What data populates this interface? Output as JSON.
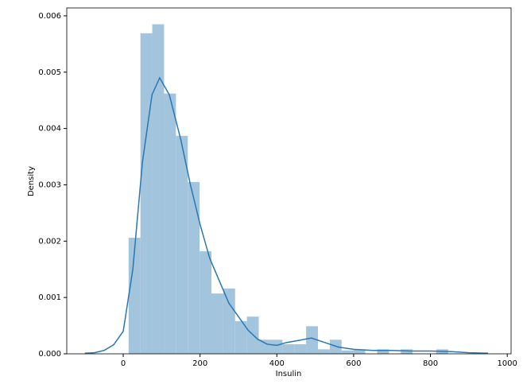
{
  "chart_data": {
    "type": "histogram",
    "x_label": "Insulin",
    "y_label": "Density",
    "bins": [
      14,
      44.8,
      75.6,
      106.4,
      137.3,
      168.1,
      198.9,
      229.7,
      260.5,
      291.3,
      322.1,
      352.9,
      383.8,
      414.6,
      445.4,
      476.2,
      507.0,
      537.8,
      568.6,
      599.5,
      630.3,
      661.1,
      691.9,
      722.7,
      753.5,
      784.3,
      815.1,
      846
    ],
    "values": [
      0.00206,
      0.00569,
      0.00585,
      0.00462,
      0.00387,
      0.00305,
      0.00182,
      0.00107,
      0.00116,
      0.00058,
      0.00066,
      0.00025,
      0.00025,
      0.00017,
      0.00017,
      0.00049,
      8e-05,
      0.00025,
      6e-05,
      8e-05,
      0,
      8e-05,
      0,
      8e-05,
      0,
      0,
      8e-05
    ],
    "color": "#a3c4dd",
    "kde": {
      "color": "#2a77b1",
      "x": [
        -100,
        -75,
        -50,
        -25,
        0,
        25,
        50,
        75,
        95,
        120,
        150,
        175,
        200,
        225,
        250,
        275,
        300,
        325,
        350,
        375,
        400,
        425,
        450,
        490,
        525,
        560,
        600,
        650,
        700,
        750,
        800,
        850,
        900,
        950
      ],
      "values": [
        1e-05,
        2e-05,
        6e-05,
        0.00016,
        0.0004,
        0.0015,
        0.0034,
        0.0046,
        0.0049,
        0.0046,
        0.0038,
        0.003,
        0.0023,
        0.0017,
        0.0013,
        0.0009,
        0.00066,
        0.00042,
        0.00026,
        0.00017,
        0.00015,
        0.0002,
        0.00023,
        0.00028,
        0.0002,
        0.00012,
        8e-05,
        6e-05,
        6e-05,
        5e-05,
        5e-05,
        4e-05,
        2e-05,
        1e-05
      ]
    },
    "xlim": [
      -147,
      1010
    ],
    "ylim": [
      0,
      0.00614
    ],
    "xticks": [
      0,
      200,
      400,
      600,
      800,
      1000
    ],
    "yticks": [
      {
        "value": 0,
        "label": "0.000"
      },
      0.001,
      0.002,
      0.003,
      0.004,
      0.005,
      0.006
    ]
  }
}
